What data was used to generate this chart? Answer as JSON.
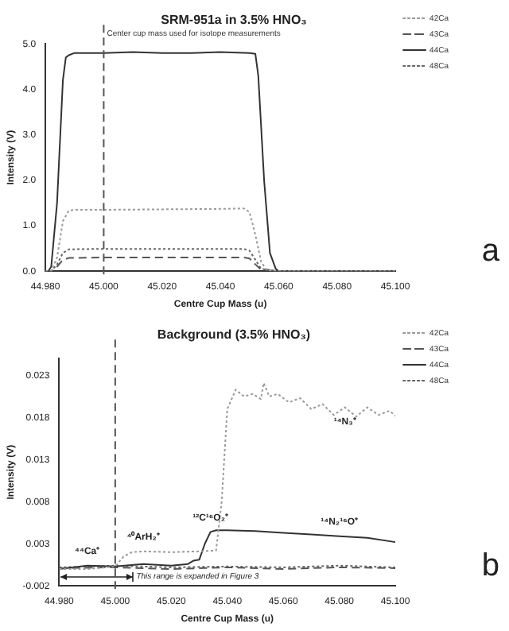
{
  "chart_data": [
    {
      "type": "line",
      "title": "SRM-951a in 3.5% HNO₃",
      "xlabel": "Centre Cup Mass (u)",
      "ylabel": "Intensity (V)",
      "legend": "top right",
      "marker": "none",
      "xlim": [
        44.98,
        45.1
      ],
      "xticks": [
        {
          "value": 44.98,
          "label": "44.980"
        },
        {
          "value": 45.0,
          "label": "45.000"
        },
        {
          "value": 45.02,
          "label": "45.020"
        },
        {
          "value": 45.04,
          "label": "45.040"
        },
        {
          "value": 45.06,
          "label": "45.060"
        },
        {
          "value": 45.08,
          "label": "45.080"
        },
        {
          "value": 45.1,
          "label": "45.100"
        }
      ],
      "ylim": [
        0,
        5
      ],
      "yticks": [
        {
          "value": 0,
          "label": "0.0"
        },
        {
          "value": 1,
          "label": "1.0"
        },
        {
          "value": 2,
          "label": "2.0"
        },
        {
          "value": 3,
          "label": "3.0"
        },
        {
          "value": 4,
          "label": "4.0"
        },
        {
          "value": 5,
          "label": "5.0"
        }
      ],
      "series": [
        {
          "name": "42Ca",
          "color": "#9a9a9a",
          "line_style": "dotted",
          "x": [
            44.98,
            44.982,
            44.984,
            44.986,
            44.988,
            44.99,
            45.0,
            45.02,
            45.04,
            45.048,
            45.05,
            45.052,
            45.054,
            45.056,
            45.06,
            45.1
          ],
          "values": [
            0,
            0,
            0.3,
            1.1,
            1.33,
            1.35,
            1.35,
            1.36,
            1.37,
            1.38,
            1.3,
            0.8,
            0.2,
            0.02,
            0,
            0
          ]
        },
        {
          "name": "43Ca",
          "color": "#555555",
          "line_style": "dashed",
          "x": [
            44.98,
            44.982,
            44.984,
            44.986,
            44.988,
            45.0,
            45.048,
            45.05,
            45.052,
            45.054,
            45.06,
            45.1
          ],
          "values": [
            0,
            0,
            0.1,
            0.25,
            0.29,
            0.3,
            0.3,
            0.28,
            0.15,
            0.03,
            0,
            0
          ]
        },
        {
          "name": "44Ca",
          "color": "#333333",
          "line_style": "solid",
          "x": [
            44.98,
            44.981,
            44.982,
            44.984,
            44.986,
            44.987,
            44.988,
            44.99,
            45.0,
            45.01,
            45.02,
            45.03,
            45.04,
            45.05,
            45.052,
            45.053,
            45.055,
            45.057,
            45.059,
            45.06,
            45.08,
            45.1
          ],
          "values": [
            0,
            0,
            0.1,
            1.5,
            4.2,
            4.7,
            4.75,
            4.8,
            4.8,
            4.82,
            4.8,
            4.8,
            4.82,
            4.8,
            4.78,
            4.3,
            2.0,
            0.4,
            0.05,
            0,
            0,
            0
          ]
        },
        {
          "name": "48Ca",
          "color": "#666666",
          "line_style": "dotted",
          "x": [
            44.98,
            44.982,
            44.984,
            44.986,
            44.988,
            45.0,
            45.048,
            45.05,
            45.052,
            45.054,
            45.06,
            45.1
          ],
          "values": [
            0,
            0,
            0.15,
            0.4,
            0.48,
            0.49,
            0.49,
            0.45,
            0.25,
            0.05,
            0,
            0
          ]
        }
      ],
      "ref_lines": [
        {
          "axis": "x",
          "value": 45.0,
          "label": "Center cup mass used for isotope measurements",
          "color": "#555555",
          "line_style": "dashed"
        }
      ],
      "annotations": [
        "a"
      ]
    },
    {
      "type": "line",
      "title": "Background (3.5% HNO₃)",
      "xlabel": "Centre Cup Mass (u)",
      "ylabel": "Intensity (V)",
      "legend": "top right",
      "marker": "none",
      "xlim": [
        44.98,
        45.1
      ],
      "xticks": [
        {
          "value": 44.98,
          "label": "44.980"
        },
        {
          "value": 45.0,
          "label": "45.000"
        },
        {
          "value": 45.02,
          "label": "45.020"
        },
        {
          "value": 45.04,
          "label": "45.040"
        },
        {
          "value": 45.06,
          "label": "45.060"
        },
        {
          "value": 45.08,
          "label": "45.080"
        },
        {
          "value": 45.1,
          "label": "45.100"
        }
      ],
      "ylim": [
        -0.002,
        0.025
      ],
      "yticks": [
        -0.002,
        0.003,
        0.008,
        0.013,
        0.018,
        0.023
      ],
      "series": [
        {
          "name": "42Ca",
          "color": "#9a9a9a",
          "line_style": "dotted",
          "x": [
            44.98,
            44.99,
            45.0,
            45.003,
            45.006,
            45.01,
            45.02,
            45.03,
            45.036,
            45.038,
            45.04,
            45.043,
            45.046,
            45.049,
            45.052,
            45.053,
            45.055,
            45.058,
            45.062,
            45.066,
            45.07,
            45.074,
            45.078,
            45.082,
            45.086,
            45.09,
            45.094,
            45.098,
            45.1
          ],
          "values": [
            0,
            0,
            0.0003,
            0.0015,
            0.002,
            0.0021,
            0.002,
            0.0021,
            0.0022,
            0.008,
            0.019,
            0.0213,
            0.0205,
            0.0208,
            0.0202,
            0.0221,
            0.0205,
            0.0208,
            0.0198,
            0.0203,
            0.019,
            0.0196,
            0.0183,
            0.0192,
            0.0181,
            0.0192,
            0.0183,
            0.0188,
            0.0182
          ]
        },
        {
          "name": "43Ca",
          "color": "#555555",
          "line_style": "dashed",
          "x": [
            44.98,
            45.0,
            45.02,
            45.04,
            45.06,
            45.08,
            45.1
          ],
          "values": [
            0.0001,
            0.0002,
            0.0,
            0.0002,
            0.0,
            0.0002,
            0.0001
          ]
        },
        {
          "name": "44Ca",
          "color": "#333333",
          "line_style": "solid",
          "x": [
            44.98,
            44.99,
            45.0,
            45.01,
            45.02,
            45.026,
            45.028,
            45.03,
            45.032,
            45.034,
            45.036,
            45.04,
            45.05,
            45.06,
            45.07,
            45.08,
            45.09,
            45.1
          ],
          "values": [
            0,
            0.0004,
            0.0003,
            0.0006,
            0.0004,
            0.0006,
            0.001,
            0.0011,
            0.003,
            0.0044,
            0.0046,
            0.0046,
            0.0045,
            0.0043,
            0.0041,
            0.0039,
            0.0037,
            0.0032
          ]
        },
        {
          "name": "48Ca",
          "color": "#666666",
          "line_style": "dotted",
          "x": [
            44.98,
            45.0,
            45.02,
            45.04,
            45.06,
            45.08,
            45.1
          ],
          "values": [
            0.0002,
            0.0004,
            0.0002,
            0.0003,
            0.0002,
            0.0004,
            0.0002
          ]
        }
      ],
      "ref_lines": [
        {
          "axis": "x",
          "value": 45.0,
          "color": "#555555",
          "line_style": "dashed"
        }
      ],
      "annotations": [
        {
          "text": "⁴⁴Ca⁺",
          "x": 44.99,
          "y": 0.0004
        },
        {
          "text": "⁴⁰ArH₂⁺",
          "x": 45.01,
          "y": 0.0021
        },
        {
          "text": "¹²C¹⁶O₂⁺",
          "x": 45.034,
          "y": 0.0044
        },
        {
          "text": "¹⁴N₃⁺",
          "x": 45.082,
          "y": 0.0192
        },
        {
          "text": "¹⁴N₂¹⁶O⁺",
          "x": 45.08,
          "y": 0.0039
        },
        "This range is expanded in Figure 3",
        "b"
      ]
    }
  ]
}
